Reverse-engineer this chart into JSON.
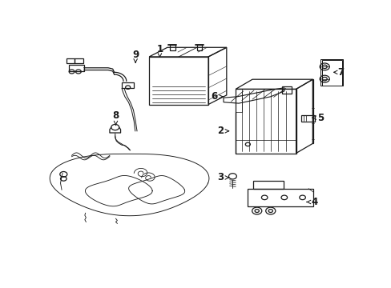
{
  "bg_color": "#ffffff",
  "line_color": "#1a1a1a",
  "lw": 0.9,
  "labels": {
    "1": [
      0.365,
      0.895,
      0.365,
      0.935
    ],
    "2": [
      0.595,
      0.565,
      0.565,
      0.565
    ],
    "3": [
      0.595,
      0.355,
      0.565,
      0.355
    ],
    "4": [
      0.84,
      0.245,
      0.875,
      0.245
    ],
    "5": [
      0.865,
      0.625,
      0.895,
      0.625
    ],
    "6": [
      0.575,
      0.72,
      0.545,
      0.72
    ],
    "7": [
      0.935,
      0.83,
      0.96,
      0.83
    ],
    "8": [
      0.22,
      0.59,
      0.22,
      0.635
    ],
    "9": [
      0.285,
      0.87,
      0.285,
      0.91
    ]
  }
}
